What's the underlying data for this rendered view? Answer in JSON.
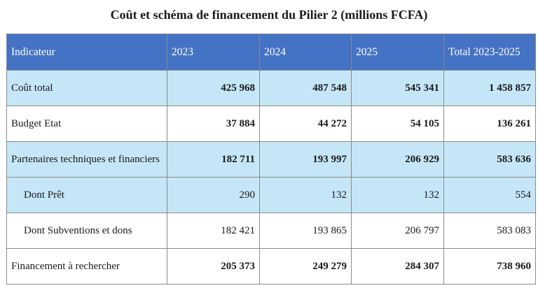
{
  "title": "Coût et schéma de financement du Pilier 2 (millions FCFA)",
  "table": {
    "headers": [
      "Indicateur",
      "2023",
      "2024",
      "2025",
      "Total 2023-2025"
    ],
    "rows": [
      {
        "label": "Coût total",
        "values": [
          "425 968",
          "487 548",
          "545 341",
          "1 458 857"
        ]
      },
      {
        "label": "Budget Etat",
        "values": [
          "37 884",
          "44 272",
          "54 105",
          "136 261"
        ]
      },
      {
        "label": "Partenaires techniques et financiers",
        "values": [
          "182 711",
          "193 997",
          "206 929",
          "583 636"
        ]
      },
      {
        "label": "Dont Prêt",
        "values": [
          "290",
          "132",
          "132",
          "554"
        ]
      },
      {
        "label": "Dont Subventions et dons",
        "values": [
          "182 421",
          "193 865",
          "206 797",
          "583 083"
        ]
      },
      {
        "label": "Financement à rechercher",
        "values": [
          "205 373",
          "249 279",
          "284 307",
          "738 960"
        ]
      }
    ]
  },
  "colors": {
    "header_bg": "#4472c4",
    "shaded_row_bg": "#c5e6f7",
    "border": "#8a8a8a"
  }
}
